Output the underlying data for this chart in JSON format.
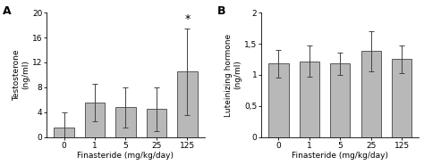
{
  "panel_A": {
    "label": "A",
    "categories": [
      "0",
      "1",
      "5",
      "25",
      "125"
    ],
    "values": [
      1.5,
      5.5,
      4.8,
      4.5,
      10.5
    ],
    "errors": [
      2.5,
      3.0,
      3.2,
      3.5,
      7.0
    ],
    "ylabel_line1": "Testosterone  (ng/ml)",
    "xlabel": "Finasteride (mg/kg/day)",
    "ylim": [
      0,
      20
    ],
    "yticks": [
      0,
      4,
      8,
      12,
      16,
      20
    ],
    "ytick_labels": [
      "0",
      "4",
      "8",
      "12",
      "16",
      "20"
    ],
    "significant_bar": 4,
    "bar_color": "#b8b8b8",
    "bar_edgecolor": "#444444"
  },
  "panel_B": {
    "label": "B",
    "categories": [
      "0",
      "1",
      "5",
      "25",
      "125"
    ],
    "values": [
      1.18,
      1.22,
      1.18,
      1.38,
      1.25
    ],
    "errors": [
      0.22,
      0.25,
      0.18,
      0.32,
      0.22
    ],
    "ylabel": "Luteinizing hormone\n(ng/ml)",
    "xlabel": "Finasteride (mg/kg/day)",
    "ylim": [
      0,
      2.0
    ],
    "yticks": [
      0,
      0.5,
      1.0,
      1.5,
      2.0
    ],
    "ytick_labels": [
      "0",
      "0,5",
      "1",
      "1,5",
      "2"
    ],
    "bar_color": "#b8b8b8",
    "bar_edgecolor": "#444444"
  },
  "background_color": "#ffffff",
  "figure_facecolor": "#ffffff"
}
